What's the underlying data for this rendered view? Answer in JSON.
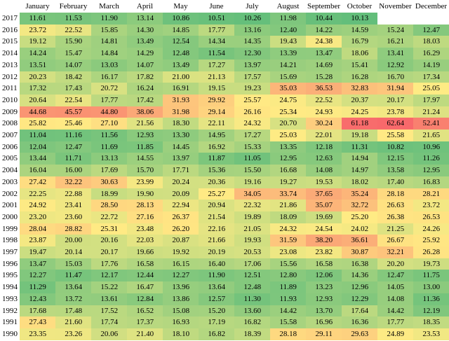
{
  "chart_data": {
    "type": "heatmap",
    "months": [
      "January",
      "February",
      "March",
      "April",
      "May",
      "June",
      "July",
      "August",
      "September",
      "October",
      "November",
      "December"
    ],
    "years": [
      "2017",
      "2016",
      "2015",
      "2014",
      "2013",
      "2012",
      "2011",
      "2010",
      "2009",
      "2008",
      "2007",
      "2006",
      "2005",
      "2004",
      "2003",
      "2002",
      "2001",
      "2000",
      "1999",
      "1998",
      "1997",
      "1996",
      "1995",
      "1994",
      "1993",
      "1992",
      "1991",
      "1990"
    ],
    "values": [
      [
        11.61,
        11.53,
        11.9,
        13.14,
        10.86,
        10.51,
        10.26,
        11.98,
        10.44,
        10.13,
        null,
        null
      ],
      [
        23.72,
        22.52,
        15.85,
        14.3,
        14.85,
        17.77,
        13.16,
        12.4,
        14.22,
        14.59,
        15.24,
        12.47
      ],
      [
        19.12,
        15.9,
        14.81,
        13.49,
        12.54,
        14.34,
        14.35,
        19.43,
        24.38,
        16.79,
        16.21,
        18.03
      ],
      [
        14.24,
        15.47,
        14.84,
        14.29,
        12.48,
        11.54,
        12.3,
        13.39,
        13.47,
        18.06,
        13.41,
        16.29
      ],
      [
        13.51,
        14.07,
        13.03,
        14.07,
        13.49,
        17.27,
        13.97,
        14.21,
        14.69,
        15.41,
        12.92,
        14.19
      ],
      [
        20.23,
        18.42,
        16.17,
        17.82,
        21.0,
        21.13,
        17.57,
        15.69,
        15.28,
        16.28,
        16.7,
        17.34
      ],
      [
        17.32,
        17.43,
        20.72,
        16.24,
        16.91,
        19.15,
        19.23,
        35.03,
        36.53,
        32.83,
        31.94,
        25.05
      ],
      [
        20.64,
        22.54,
        17.77,
        17.42,
        31.93,
        29.92,
        25.57,
        24.75,
        22.52,
        20.37,
        20.17,
        17.97
      ],
      [
        44.68,
        45.57,
        44.8,
        38.06,
        31.98,
        29.14,
        26.16,
        25.34,
        24.93,
        24.25,
        23.78,
        21.24
      ],
      [
        25.82,
        25.46,
        27.1,
        21.56,
        18.3,
        22.11,
        24.32,
        20.7,
        30.24,
        61.18,
        62.64,
        52.41
      ],
      [
        11.04,
        11.16,
        11.56,
        12.93,
        13.3,
        14.95,
        17.27,
        25.03,
        22.01,
        19.18,
        25.58,
        21.65
      ],
      [
        12.04,
        12.47,
        11.69,
        11.85,
        14.45,
        16.92,
        15.33,
        13.35,
        12.18,
        11.31,
        10.82,
        10.96
      ],
      [
        13.44,
        11.71,
        13.13,
        14.55,
        13.97,
        11.87,
        11.05,
        12.95,
        12.63,
        14.94,
        12.15,
        11.26
      ],
      [
        16.04,
        16.0,
        17.69,
        15.7,
        17.71,
        15.36,
        15.5,
        16.68,
        14.08,
        14.97,
        13.58,
        12.95
      ],
      [
        27.42,
        32.22,
        30.63,
        23.99,
        20.24,
        20.36,
        19.16,
        19.27,
        19.53,
        18.02,
        17.4,
        16.83
      ],
      [
        22.25,
        22.88,
        18.99,
        19.9,
        20.09,
        25.27,
        34.05,
        33.74,
        37.65,
        35.24,
        28.18,
        28.21
      ],
      [
        24.92,
        23.41,
        28.5,
        28.13,
        22.94,
        20.94,
        22.32,
        21.86,
        35.07,
        32.72,
        26.63,
        23.72
      ],
      [
        23.2,
        23.6,
        22.72,
        27.16,
        26.37,
        21.54,
        19.89,
        18.09,
        19.69,
        25.2,
        26.38,
        26.53
      ],
      [
        28.04,
        28.82,
        25.31,
        23.48,
        26.2,
        22.16,
        21.05,
        24.32,
        24.54,
        24.02,
        21.25,
        24.26
      ],
      [
        23.87,
        20.0,
        20.16,
        22.03,
        20.87,
        21.66,
        19.93,
        31.59,
        38.2,
        36.61,
        26.67,
        25.92
      ],
      [
        19.47,
        20.14,
        20.17,
        19.66,
        19.92,
        20.19,
        20.53,
        23.08,
        23.82,
        30.87,
        32.21,
        26.28
      ],
      [
        13.47,
        15.03,
        17.76,
        16.58,
        16.15,
        16.4,
        17.06,
        15.56,
        16.58,
        16.38,
        20.2,
        19.73
      ],
      [
        12.27,
        11.47,
        12.17,
        12.44,
        12.27,
        11.9,
        12.51,
        12.8,
        12.06,
        14.36,
        12.47,
        11.75
      ],
      [
        11.29,
        13.64,
        15.22,
        16.47,
        13.96,
        13.64,
        12.48,
        11.89,
        13.23,
        12.96,
        14.05,
        13.0
      ],
      [
        12.43,
        13.72,
        13.61,
        12.84,
        13.86,
        12.57,
        11.3,
        11.93,
        12.93,
        12.29,
        14.08,
        11.36
      ],
      [
        17.68,
        17.48,
        17.52,
        16.52,
        15.08,
        15.2,
        13.6,
        14.42,
        13.7,
        17.64,
        14.42,
        12.19
      ],
      [
        27.43,
        21.6,
        17.74,
        17.37,
        16.93,
        17.19,
        16.82,
        15.58,
        16.96,
        16.36,
        17.77,
        18.35
      ],
      [
        23.35,
        23.26,
        20.06,
        21.4,
        18.1,
        16.82,
        18.39,
        28.18,
        29.11,
        29.63,
        24.89,
        23.53
      ]
    ]
  }
}
